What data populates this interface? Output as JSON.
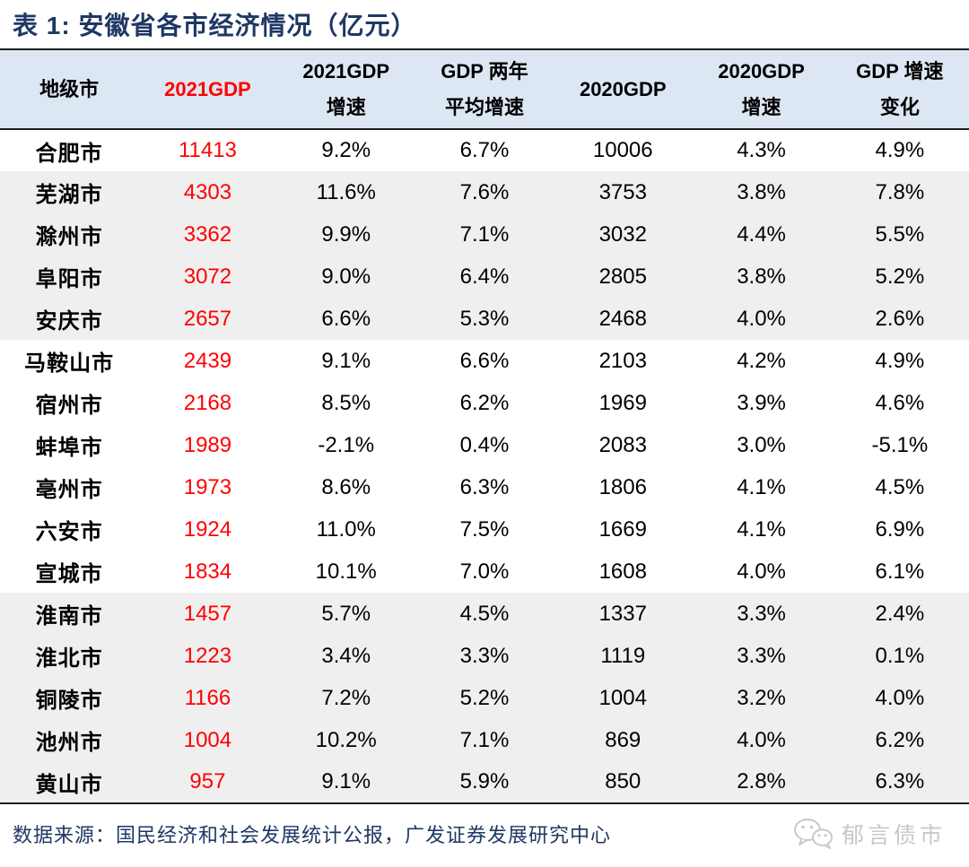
{
  "header": {
    "title": "表 1:  安徽省各市经济情况（亿元）"
  },
  "table": {
    "columns": [
      {
        "key": "city",
        "lines": [
          "地级市"
        ],
        "red": false
      },
      {
        "key": "gdp2021",
        "lines": [
          "2021GDP"
        ],
        "red": true
      },
      {
        "key": "growth2021",
        "lines": [
          "2021GDP",
          "增速"
        ],
        "red": false
      },
      {
        "key": "avg_growth_2yr",
        "lines": [
          "GDP 两年",
          "平均增速"
        ],
        "red": false
      },
      {
        "key": "gdp2020",
        "lines": [
          "2020GDP"
        ],
        "red": false
      },
      {
        "key": "growth2020",
        "lines": [
          "2020GDP",
          "增速"
        ],
        "red": false
      },
      {
        "key": "growth_change",
        "lines": [
          "GDP 增速",
          "变化"
        ],
        "red": false
      }
    ],
    "rows": [
      {
        "city": "合肥市",
        "gdp2021": "11413",
        "growth2021": "9.2%",
        "avg_growth_2yr": "6.7%",
        "gdp2020": "10006",
        "growth2020": "4.3%",
        "growth_change": "4.9%",
        "shaded": false
      },
      {
        "city": "芜湖市",
        "gdp2021": "4303",
        "growth2021": "11.6%",
        "avg_growth_2yr": "7.6%",
        "gdp2020": "3753",
        "growth2020": "3.8%",
        "growth_change": "7.8%",
        "shaded": true
      },
      {
        "city": "滁州市",
        "gdp2021": "3362",
        "growth2021": "9.9%",
        "avg_growth_2yr": "7.1%",
        "gdp2020": "3032",
        "growth2020": "4.4%",
        "growth_change": "5.5%",
        "shaded": true
      },
      {
        "city": "阜阳市",
        "gdp2021": "3072",
        "growth2021": "9.0%",
        "avg_growth_2yr": "6.4%",
        "gdp2020": "2805",
        "growth2020": "3.8%",
        "growth_change": "5.2%",
        "shaded": true
      },
      {
        "city": "安庆市",
        "gdp2021": "2657",
        "growth2021": "6.6%",
        "avg_growth_2yr": "5.3%",
        "gdp2020": "2468",
        "growth2020": "4.0%",
        "growth_change": "2.6%",
        "shaded": true
      },
      {
        "city": "马鞍山市",
        "gdp2021": "2439",
        "growth2021": "9.1%",
        "avg_growth_2yr": "6.6%",
        "gdp2020": "2103",
        "growth2020": "4.2%",
        "growth_change": "4.9%",
        "shaded": false
      },
      {
        "city": "宿州市",
        "gdp2021": "2168",
        "growth2021": "8.5%",
        "avg_growth_2yr": "6.2%",
        "gdp2020": "1969",
        "growth2020": "3.9%",
        "growth_change": "4.6%",
        "shaded": false
      },
      {
        "city": "蚌埠市",
        "gdp2021": "1989",
        "growth2021": "-2.1%",
        "avg_growth_2yr": "0.4%",
        "gdp2020": "2083",
        "growth2020": "3.0%",
        "growth_change": "-5.1%",
        "shaded": false
      },
      {
        "city": "亳州市",
        "gdp2021": "1973",
        "growth2021": "8.6%",
        "avg_growth_2yr": "6.3%",
        "gdp2020": "1806",
        "growth2020": "4.1%",
        "growth_change": "4.5%",
        "shaded": false
      },
      {
        "city": "六安市",
        "gdp2021": "1924",
        "growth2021": "11.0%",
        "avg_growth_2yr": "7.5%",
        "gdp2020": "1669",
        "growth2020": "4.1%",
        "growth_change": "6.9%",
        "shaded": false
      },
      {
        "city": "宣城市",
        "gdp2021": "1834",
        "growth2021": "10.1%",
        "avg_growth_2yr": "7.0%",
        "gdp2020": "1608",
        "growth2020": "4.0%",
        "growth_change": "6.1%",
        "shaded": false
      },
      {
        "city": "淮南市",
        "gdp2021": "1457",
        "growth2021": "5.7%",
        "avg_growth_2yr": "4.5%",
        "gdp2020": "1337",
        "growth2020": "3.3%",
        "growth_change": "2.4%",
        "shaded": true
      },
      {
        "city": "淮北市",
        "gdp2021": "1223",
        "growth2021": "3.4%",
        "avg_growth_2yr": "3.3%",
        "gdp2020": "1119",
        "growth2020": "3.3%",
        "growth_change": "0.1%",
        "shaded": true
      },
      {
        "city": "铜陵市",
        "gdp2021": "1166",
        "growth2021": "7.2%",
        "avg_growth_2yr": "5.2%",
        "gdp2020": "1004",
        "growth2020": "3.2%",
        "growth_change": "4.0%",
        "shaded": true
      },
      {
        "city": "池州市",
        "gdp2021": "1004",
        "growth2021": "10.2%",
        "avg_growth_2yr": "7.1%",
        "gdp2020": "869",
        "growth2020": "4.0%",
        "growth_change": "6.2%",
        "shaded": true
      },
      {
        "city": "黄山市",
        "gdp2021": "957",
        "growth2021": "9.1%",
        "avg_growth_2yr": "5.9%",
        "gdp2020": "850",
        "growth2020": "2.8%",
        "growth_change": "6.3%",
        "shaded": true
      }
    ]
  },
  "footer": {
    "source": "数据来源：国民经济和社会发展统计公报，广发证券发展研究中心",
    "watermark": "郁言债市",
    "watermark_icon": "wechat-icon"
  },
  "colors": {
    "title_navy": "#1f3864",
    "header_bg": "#dce7f3",
    "shaded_row": "#efefef",
    "accent_red": "#ff0000",
    "border_dark": "#1f1f1f",
    "watermark_gray": "#c8c8c8"
  },
  "chart_data": {
    "type": "table",
    "title": "表 1:  安徽省各市经济情况（亿元）",
    "columns": [
      "地级市",
      "2021GDP",
      "2021GDP增速",
      "GDP两年平均增速",
      "2020GDP",
      "2020GDP增速",
      "GDP增速变化"
    ],
    "rows": [
      [
        "合肥市",
        11413,
        "9.2%",
        "6.7%",
        10006,
        "4.3%",
        "4.9%"
      ],
      [
        "芜湖市",
        4303,
        "11.6%",
        "7.6%",
        3753,
        "3.8%",
        "7.8%"
      ],
      [
        "滁州市",
        3362,
        "9.9%",
        "7.1%",
        3032,
        "4.4%",
        "5.5%"
      ],
      [
        "阜阳市",
        3072,
        "9.0%",
        "6.4%",
        2805,
        "3.8%",
        "5.2%"
      ],
      [
        "安庆市",
        2657,
        "6.6%",
        "5.3%",
        2468,
        "4.0%",
        "2.6%"
      ],
      [
        "马鞍山市",
        2439,
        "9.1%",
        "6.6%",
        2103,
        "4.2%",
        "4.9%"
      ],
      [
        "宿州市",
        2168,
        "8.5%",
        "6.2%",
        1969,
        "3.9%",
        "4.6%"
      ],
      [
        "蚌埠市",
        1989,
        "-2.1%",
        "0.4%",
        2083,
        "3.0%",
        "-5.1%"
      ],
      [
        "亳州市",
        1973,
        "8.6%",
        "6.3%",
        1806,
        "4.1%",
        "4.5%"
      ],
      [
        "六安市",
        1924,
        "11.0%",
        "7.5%",
        1669,
        "4.1%",
        "6.9%"
      ],
      [
        "宣城市",
        1834,
        "10.1%",
        "7.0%",
        1608,
        "4.0%",
        "6.1%"
      ],
      [
        "淮南市",
        1457,
        "5.7%",
        "4.5%",
        1337,
        "3.3%",
        "2.4%"
      ],
      [
        "淮北市",
        1223,
        "3.4%",
        "3.3%",
        1119,
        "3.3%",
        "0.1%"
      ],
      [
        "铜陵市",
        1166,
        "7.2%",
        "5.2%",
        1004,
        "3.2%",
        "4.0%"
      ],
      [
        "池州市",
        1004,
        "10.2%",
        "7.1%",
        869,
        "4.0%",
        "6.2%"
      ],
      [
        "黄山市",
        957,
        "9.1%",
        "5.9%",
        850,
        "2.8%",
        "6.3%"
      ]
    ],
    "source": "数据来源：国民经济和社会发展统计公报，广发证券发展研究中心"
  }
}
